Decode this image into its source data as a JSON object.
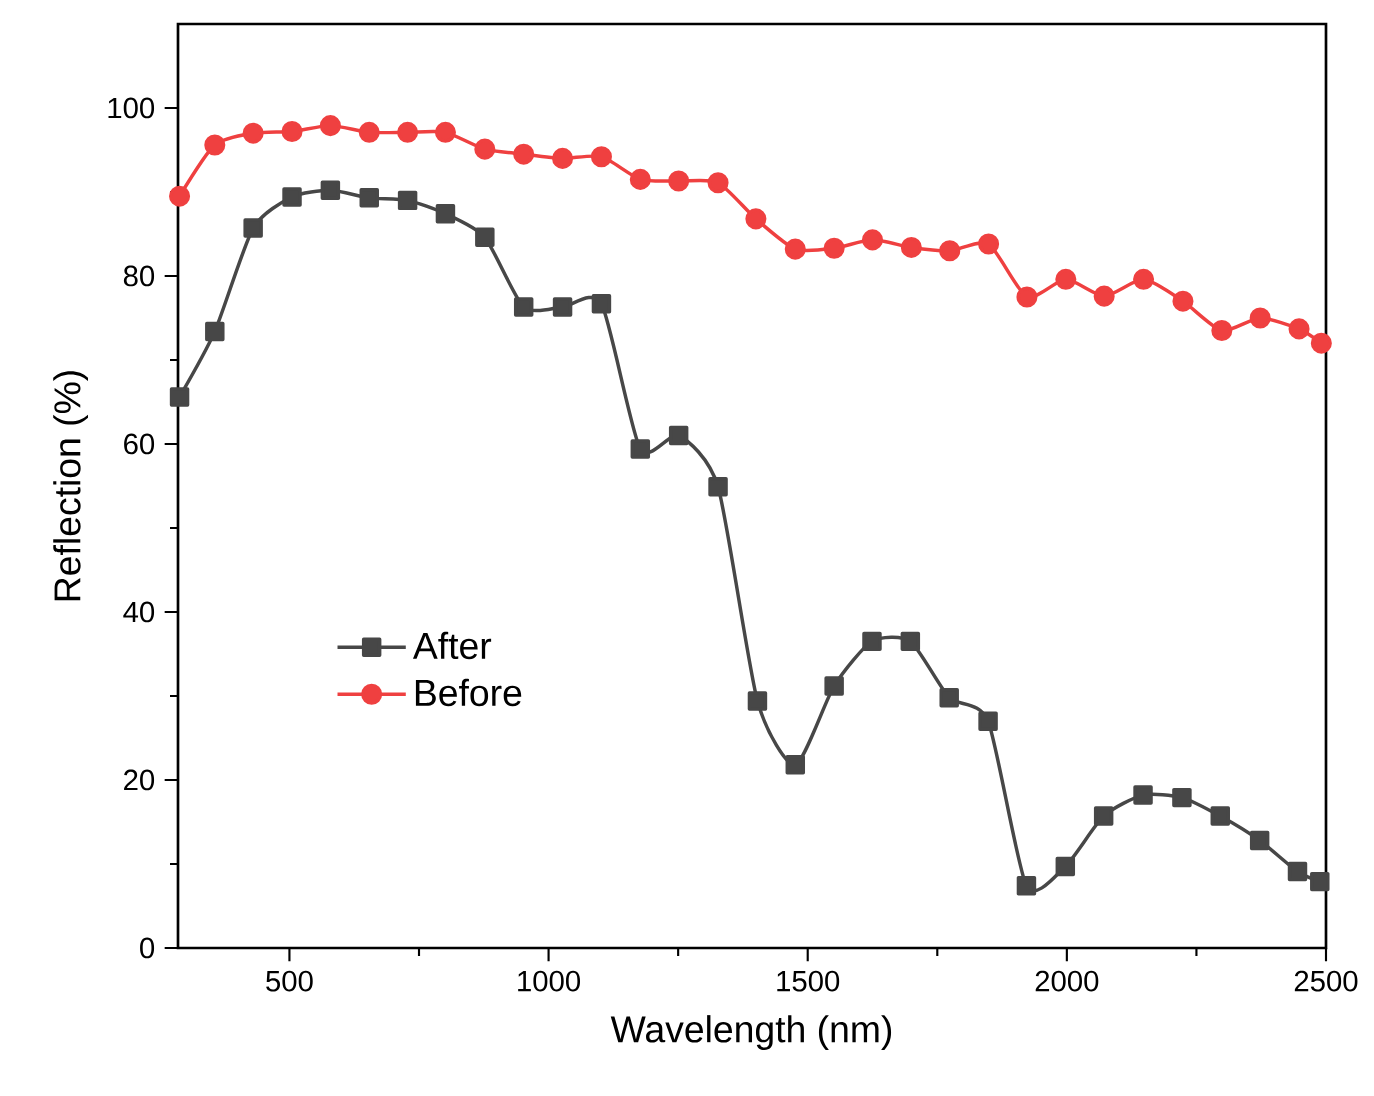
{
  "chart_data": {
    "type": "line",
    "xlabel": "Wavelength (nm)",
    "ylabel": "Reflection (%)",
    "xlim": [
      285,
      2500
    ],
    "ylim": [
      0,
      110
    ],
    "xticks": [
      500,
      1000,
      1500,
      2000,
      2500
    ],
    "yticks": [
      0,
      20,
      40,
      60,
      80,
      100
    ],
    "grid": false,
    "legend": "left",
    "line_style": "solid",
    "series": [
      {
        "name": "After",
        "color": "#474747",
        "marker": "square",
        "x": [
          288,
          356,
          430,
          505,
          579,
          654,
          728,
          801,
          877,
          952,
          1027,
          1102,
          1177,
          1251,
          1327,
          1403,
          1476,
          1551,
          1624,
          1698,
          1773,
          1848,
          1922,
          1997,
          2071,
          2147,
          2222,
          2296,
          2372,
          2445,
          2488
        ],
        "values": [
          65.6,
          73.4,
          85.7,
          89.4,
          90.2,
          89.3,
          89.0,
          87.4,
          84.6,
          76.3,
          76.3,
          76.7,
          59.4,
          61.0,
          54.9,
          29.4,
          21.8,
          31.2,
          36.5,
          36.5,
          29.8,
          27.0,
          7.4,
          9.7,
          15.7,
          18.2,
          17.9,
          15.7,
          12.8,
          9.1,
          7.9
        ]
      },
      {
        "name": "Before",
        "color": "#ef4040",
        "marker": "circle",
        "x": [
          288,
          356,
          430,
          505,
          579,
          654,
          728,
          801,
          877,
          952,
          1027,
          1102,
          1177,
          1251,
          1327,
          1400,
          1476,
          1551,
          1625,
          1700,
          1774,
          1849,
          1923,
          1998,
          2072,
          2148,
          2224,
          2299,
          2373,
          2448,
          2491
        ],
        "values": [
          89.5,
          95.6,
          97.0,
          97.2,
          97.9,
          97.1,
          97.1,
          97.1,
          95.1,
          94.5,
          94.0,
          94.2,
          91.5,
          91.3,
          91.1,
          86.8,
          83.2,
          83.3,
          84.3,
          83.4,
          83.0,
          83.8,
          77.5,
          79.6,
          77.6,
          79.6,
          77.0,
          73.5,
          75.0,
          73.7,
          72.0
        ]
      }
    ]
  }
}
